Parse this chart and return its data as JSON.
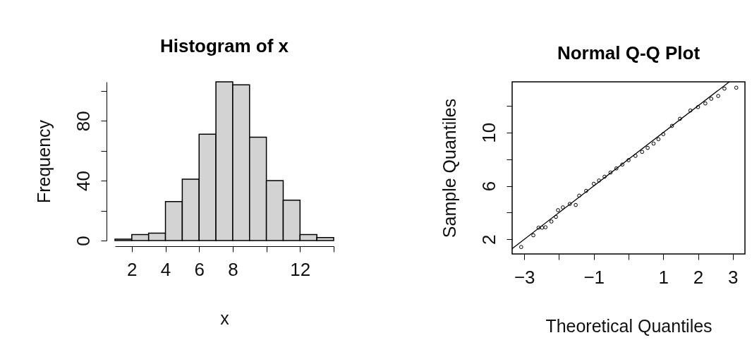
{
  "chart_data": [
    {
      "type": "histogram",
      "title": "Histogram of x",
      "xlabel": "x",
      "ylabel": "Frequency",
      "color": "#d3d3d3",
      "bins": [
        1,
        2,
        3,
        4,
        5,
        6,
        7,
        8,
        9,
        10,
        11,
        12,
        13,
        14
      ],
      "values": [
        1,
        4,
        5,
        26,
        41,
        71,
        106,
        104,
        69,
        40,
        27,
        4,
        2
      ],
      "xlim": [
        1,
        14
      ],
      "xticks": [
        2,
        4,
        6,
        8,
        {
          "value": 10,
          "label": null
        },
        12,
        {
          "value": 14,
          "label": null
        }
      ],
      "ylim": [
        0,
        106
      ],
      "yticks": [
        0,
        {
          "value": 20,
          "label": null
        },
        40,
        {
          "value": 60,
          "label": null
        },
        80,
        {
          "value": 100,
          "label": null
        }
      ]
    },
    {
      "type": "scatter",
      "title": "Normal Q-Q Plot",
      "xlabel": "Theoretical Quantiles",
      "ylabel": "Sample Quantiles",
      "xlim": [
        -3.35,
        3.35
      ],
      "xticks": [
        -3,
        {
          "value": -2,
          "label": null
        },
        -1,
        {
          "value": 0,
          "label": null
        },
        1,
        2,
        3
      ],
      "ylim": [
        0.9,
        13.8
      ],
      "yticks": [
        2,
        {
          "value": 4,
          "label": null
        },
        6,
        {
          "value": 8,
          "label": null
        },
        10,
        {
          "value": 12,
          "label": null
        }
      ],
      "series": [
        {
          "color": "#000000",
          "marker": "circle",
          "x": [
            -3.09,
            -2.74,
            -2.59,
            -2.49,
            -2.39,
            -2.22,
            -2.09,
            -2.03,
            -1.89,
            -1.69,
            -1.52,
            -1.42,
            -1.22,
            -1.0,
            -0.85,
            -0.69,
            -0.52,
            -0.35,
            -0.18,
            0,
            0.2,
            0.39,
            0.55,
            0.72,
            0.86,
            1.0,
            1.25,
            1.48,
            1.78,
            2.0,
            2.21,
            2.38,
            2.58,
            2.76,
            3.1
          ],
          "values": [
            1.42,
            2.3,
            2.87,
            2.87,
            2.9,
            3.33,
            3.68,
            4.18,
            4.39,
            4.65,
            4.57,
            5.27,
            5.63,
            6.16,
            6.4,
            6.69,
            7.0,
            7.31,
            7.6,
            7.93,
            8.25,
            8.55,
            8.85,
            9.17,
            9.5,
            9.88,
            10.5,
            11.03,
            11.65,
            11.91,
            12.18,
            12.53,
            12.74,
            13.29,
            13.36
          ]
        },
        {
          "type": "line",
          "color": "#000000",
          "x": [
            -3.35,
            2.9
          ],
          "values": [
            1.3,
            13.8
          ]
        }
      ]
    }
  ]
}
